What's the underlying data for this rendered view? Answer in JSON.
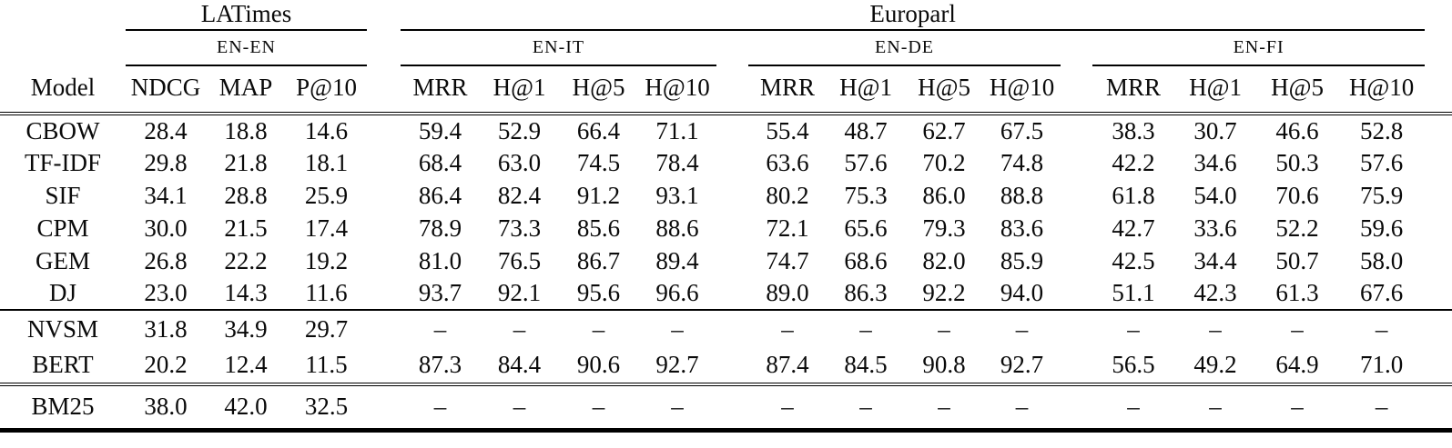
{
  "table": {
    "corner_label": "Model",
    "missing_value_symbol": "–",
    "datasets": [
      {
        "label": "LATimes"
      },
      {
        "label": "Europarl"
      }
    ],
    "language_pairs": [
      {
        "label": "EN-EN",
        "metrics": [
          "NDCG",
          "MAP",
          "P@10"
        ]
      },
      {
        "label": "EN-IT",
        "metrics": [
          "MRR",
          "H@1",
          "H@5",
          "H@10"
        ]
      },
      {
        "label": "EN-DE",
        "metrics": [
          "MRR",
          "H@1",
          "H@5",
          "H@10"
        ]
      },
      {
        "label": "EN-FI",
        "metrics": [
          "MRR",
          "H@1",
          "H@5",
          "H@10"
        ]
      }
    ],
    "sections": [
      {
        "rows": [
          {
            "model": "CBOW",
            "values": [
              "28.4",
              "18.8",
              "14.6",
              "59.4",
              "52.9",
              "66.4",
              "71.1",
              "55.4",
              "48.7",
              "62.7",
              "67.5",
              "38.3",
              "30.7",
              "46.6",
              "52.8"
            ]
          },
          {
            "model": "TF-IDF",
            "values": [
              "29.8",
              "21.8",
              "18.1",
              "68.4",
              "63.0",
              "74.5",
              "78.4",
              "63.6",
              "57.6",
              "70.2",
              "74.8",
              "42.2",
              "34.6",
              "50.3",
              "57.6"
            ]
          },
          {
            "model": "SIF",
            "values": [
              "34.1",
              "28.8",
              "25.9",
              "86.4",
              "82.4",
              "91.2",
              "93.1",
              "80.2",
              "75.3",
              "86.0",
              "88.8",
              "61.8",
              "54.0",
              "70.6",
              "75.9"
            ]
          },
          {
            "model": "CPM",
            "values": [
              "30.0",
              "21.5",
              "17.4",
              "78.9",
              "73.3",
              "85.6",
              "88.6",
              "72.1",
              "65.6",
              "79.3",
              "83.6",
              "42.7",
              "33.6",
              "52.2",
              "59.6"
            ]
          },
          {
            "model": "GEM",
            "values": [
              "26.8",
              "22.2",
              "19.2",
              "81.0",
              "76.5",
              "86.7",
              "89.4",
              "74.7",
              "68.6",
              "82.0",
              "85.9",
              "42.5",
              "34.4",
              "50.7",
              "58.0"
            ]
          },
          {
            "model": "DJ",
            "values": [
              "23.0",
              "14.3",
              "11.6",
              "93.7",
              "92.1",
              "95.6",
              "96.6",
              "89.0",
              "86.3",
              "92.2",
              "94.0",
              "51.1",
              "42.3",
              "61.3",
              "67.6"
            ]
          }
        ]
      },
      {
        "rows": [
          {
            "model": "NVSM",
            "values": [
              "31.8",
              "34.9",
              "29.7",
              "–",
              "–",
              "–",
              "–",
              "–",
              "–",
              "–",
              "–",
              "–",
              "–",
              "–",
              "–"
            ]
          },
          {
            "model": "BERT",
            "values": [
              "20.2",
              "12.4",
              "11.5",
              "87.3",
              "84.4",
              "90.6",
              "92.7",
              "87.4",
              "84.5",
              "90.8",
              "92.7",
              "56.5",
              "49.2",
              "64.9",
              "71.0"
            ]
          }
        ]
      },
      {
        "rows": [
          {
            "model": "BM25",
            "values": [
              "38.0",
              "42.0",
              "32.5",
              "–",
              "–",
              "–",
              "–",
              "–",
              "–",
              "–",
              "–",
              "–",
              "–",
              "–",
              "–"
            ]
          }
        ]
      }
    ]
  }
}
